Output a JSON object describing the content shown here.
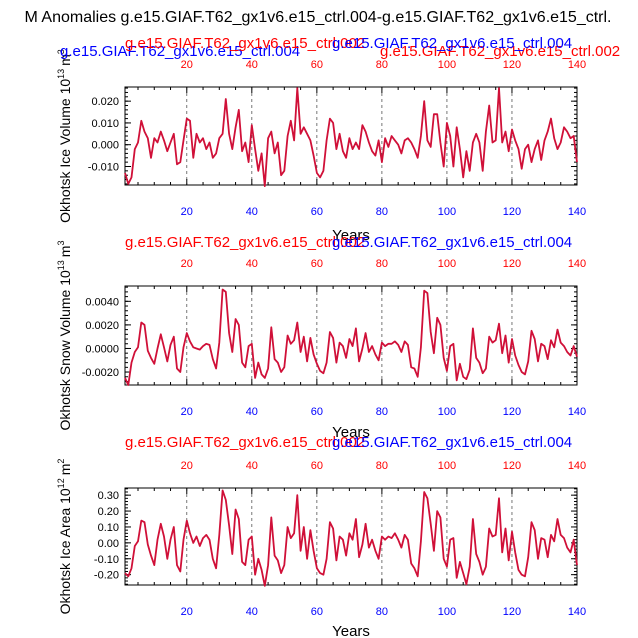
{
  "figure": {
    "title": "M Anomalies g.e15.GIAF.T62_gx1v6.e15_ctrl.004-g.e15.GIAF.T62_gx1v6.e15_ctrl.",
    "colors": {
      "blue": "#0000ff",
      "red": "#ff0000",
      "line": "#d01038",
      "grid": "#555555",
      "axis": "#000000"
    }
  },
  "chart_data": [
    {
      "type": "line",
      "ylabel": "Okhotsk Ice Volume 10",
      "ylabel_exp": "13",
      "ylabel_unit": "m",
      "ylabel_unit_exp": "3",
      "xlabel": "Years",
      "top_left_label": "g.e15.GIAF.T62_gx1v6.e15_ctrl.004",
      "top_mid_label": "g.e15.GIAF.T62_gx1v6.e15_ctrl.002",
      "top_right_label": "g.e15.GIAF.T62_gx1v6.e15_ctrl.002",
      "top_mid_label_2": "g.e15.GIAF.T62_gx1v6.e15_ctrl.004",
      "xlim": [
        1,
        140
      ],
      "ylim": [
        -0.0185,
        0.0265
      ],
      "xticks": [
        20,
        40,
        60,
        80,
        100,
        120,
        140
      ],
      "xtick_labels": [
        "20",
        "40",
        "60",
        "80",
        "100",
        "120",
        "140"
      ],
      "yticks": [
        -0.01,
        0.0,
        0.01,
        0.02
      ],
      "ytick_labels": [
        "-0.010",
        "0.000",
        "0.010",
        "0.020"
      ],
      "dashed_x": [
        20,
        40,
        60,
        80,
        100,
        120
      ],
      "x": [
        1,
        2,
        3,
        4,
        5,
        6,
        7,
        8,
        9,
        10,
        11,
        12,
        13,
        14,
        15,
        16,
        17,
        18,
        19,
        20,
        21,
        22,
        23,
        24,
        25,
        26,
        27,
        28,
        29,
        30,
        31,
        32,
        33,
        34,
        35,
        36,
        37,
        38,
        39,
        40,
        41,
        42,
        43,
        44,
        45,
        46,
        47,
        48,
        49,
        50,
        51,
        52,
        53,
        54,
        55,
        56,
        57,
        58,
        59,
        60,
        61,
        62,
        63,
        64,
        65,
        66,
        67,
        68,
        69,
        70,
        71,
        72,
        73,
        74,
        75,
        76,
        77,
        78,
        79,
        80,
        81,
        82,
        83,
        84,
        85,
        86,
        87,
        88,
        89,
        90,
        91,
        92,
        93,
        94,
        95,
        96,
        97,
        98,
        99,
        100,
        101,
        102,
        103,
        104,
        105,
        106,
        107,
        108,
        109,
        110,
        111,
        112,
        113,
        114,
        115,
        116,
        117,
        118,
        119,
        120,
        121,
        122,
        123,
        124,
        125,
        126,
        127,
        128,
        129,
        130,
        131,
        132,
        133,
        134,
        135,
        136,
        137,
        138,
        139,
        140
      ],
      "y": [
        -0.013,
        -0.018,
        -0.015,
        -0.002,
        0.001,
        0.011,
        0.006,
        0.003,
        -0.006,
        0.003,
        0.001,
        0.006,
        0.002,
        -0.003,
        0.001,
        0.005,
        -0.009,
        -0.008,
        0.002,
        0.012,
        0.011,
        -0.006,
        0.005,
        0.001,
        0.003,
        -0.002,
        0.001,
        -0.006,
        -0.004,
        0.003,
        0.005,
        0.021,
        0.005,
        -0.002,
        0.008,
        0.016,
        -0.003,
        0.001,
        -0.008,
        0.009,
        -0.002,
        -0.012,
        -0.004,
        -0.019,
        0.003,
        0.006,
        -0.004,
        0.001,
        -0.014,
        -0.012,
        0.004,
        0.011,
        0.002,
        0.026,
        0.005,
        0.008,
        0.005,
        0.002,
        -0.005,
        -0.013,
        -0.015,
        -0.012,
        0.002,
        0.012,
        0.01,
        -0.002,
        0.005,
        -0.003,
        -0.006,
        0.003,
        -0.002,
        0.001,
        -0.002,
        0.009,
        0.006,
        0.001,
        -0.003,
        -0.005,
        0.002,
        -0.008,
        0.003,
        -0.001,
        0.004,
        0.002,
        0.0,
        -0.004,
        0.002,
        0.003,
        0.001,
        -0.002,
        -0.006,
        0.004,
        0.02,
        0.002,
        -0.001,
        0.014,
        0.014,
        0.001,
        -0.01,
        0.01,
        0.004,
        -0.01,
        0.008,
        -0.002,
        -0.015,
        -0.003,
        -0.012,
        0.001,
        0.005,
        0.001,
        -0.012,
        0.006,
        0.018,
        0.001,
        0.002,
        0.026,
        0.001,
        0.006,
        -0.003,
        0.007,
        0.002,
        -0.002,
        -0.011,
        -0.002,
        0.0,
        -0.008,
        -0.002,
        0.002,
        -0.007,
        0.002,
        0.006,
        0.012,
        0.003,
        -0.002,
        0.001,
        0.008,
        0.006,
        0.003,
        0.004,
        -0.008
      ]
    },
    {
      "type": "line",
      "ylabel": "Okhotsk Snow Volume 10",
      "ylabel_exp": "13",
      "ylabel_unit": "m",
      "ylabel_unit_exp": "3",
      "xlabel": "Years",
      "top_left_label": "g.e15.GIAF.T62_gx1v6.e15_ctrl.002",
      "top_right_label": "g.e15.GIAF.T62_gx1v6.e15_ctrl.004",
      "xlim": [
        1,
        140
      ],
      "ylim": [
        -0.0031,
        0.0053
      ],
      "xticks": [
        20,
        40,
        60,
        80,
        100,
        120,
        140
      ],
      "xtick_labels": [
        "20",
        "40",
        "60",
        "80",
        "100",
        "120",
        "140"
      ],
      "yticks": [
        -0.002,
        0.0,
        0.002,
        0.004
      ],
      "ytick_labels": [
        "-0.0020",
        "0.0000",
        "0.0020",
        "0.0040"
      ],
      "dashed_x": [
        20,
        40,
        60,
        80,
        100,
        120
      ],
      "x": [
        1,
        2,
        3,
        4,
        5,
        6,
        7,
        8,
        9,
        10,
        11,
        12,
        13,
        14,
        15,
        16,
        17,
        18,
        19,
        20,
        21,
        22,
        23,
        24,
        25,
        26,
        27,
        28,
        29,
        30,
        31,
        32,
        33,
        34,
        35,
        36,
        37,
        38,
        39,
        40,
        41,
        42,
        43,
        44,
        45,
        46,
        47,
        48,
        49,
        50,
        51,
        52,
        53,
        54,
        55,
        56,
        57,
        58,
        59,
        60,
        61,
        62,
        63,
        64,
        65,
        66,
        67,
        68,
        69,
        70,
        71,
        72,
        73,
        74,
        75,
        76,
        77,
        78,
        79,
        80,
        81,
        82,
        83,
        84,
        85,
        86,
        87,
        88,
        89,
        90,
        91,
        92,
        93,
        94,
        95,
        96,
        97,
        98,
        99,
        100,
        101,
        102,
        103,
        104,
        105,
        106,
        107,
        108,
        109,
        110,
        111,
        112,
        113,
        114,
        115,
        116,
        117,
        118,
        119,
        120,
        121,
        122,
        123,
        124,
        125,
        126,
        127,
        128,
        129,
        130,
        131,
        132,
        133,
        134,
        135,
        136,
        137,
        138,
        139,
        140
      ],
      "y": [
        -0.0025,
        -0.0031,
        -0.0012,
        -0.0003,
        0.0001,
        0.0022,
        0.002,
        -0.0002,
        -0.0008,
        -0.0013,
        0.0,
        0.0012,
        0.0001,
        -0.0011,
        0.0003,
        0.001,
        -0.0017,
        -0.002,
        0.0001,
        0.0013,
        0.0006,
        0.0001,
        0.0,
        -0.0001,
        0.0002,
        0.0004,
        0.0003,
        -0.0009,
        -0.0017,
        0.0005,
        0.005,
        0.0048,
        0.0013,
        -0.0003,
        0.0025,
        0.002,
        -0.0012,
        -0.0016,
        0.0002,
        0.0004,
        -0.0025,
        -0.0012,
        -0.0022,
        -0.0025,
        -0.0017,
        0.0018,
        -0.0009,
        -0.0012,
        -0.002,
        -0.0016,
        0.0011,
        0.0004,
        0.0007,
        0.0022,
        -0.0003,
        0.001,
        -0.0011,
        0.0009,
        -0.0005,
        -0.0013,
        -0.0019,
        -0.0021,
        -0.0012,
        0.0014,
        0.0009,
        -0.0012,
        0.0005,
        0.0002,
        -0.0008,
        0.0008,
        0.0002,
        0.0017,
        -0.0011,
        0.0,
        0.0013,
        -0.0003,
        0.0002,
        -0.0005,
        -0.001,
        0.0005,
        0.0002,
        0.0004,
        0.0004,
        0.0006,
        0.0003,
        -0.0003,
        0.0006,
        0.0003,
        -0.0016,
        -0.0017,
        -0.0024,
        0.0001,
        0.0049,
        0.0047,
        0.0014,
        -0.0004,
        0.0026,
        0.002,
        -0.0008,
        -0.0019,
        0.0002,
        0.0004,
        -0.0027,
        -0.0013,
        -0.0024,
        -0.0026,
        -0.0018,
        0.0017,
        -0.0008,
        -0.0012,
        -0.0021,
        -0.0017,
        0.001,
        0.0005,
        0.0007,
        0.0021,
        -0.0004,
        0.0011,
        -0.0012,
        0.0008,
        -0.0006,
        -0.0014,
        -0.002,
        -0.0022,
        -0.0011,
        0.0015,
        0.0008,
        -0.0011,
        0.0004,
        0.0002,
        -0.0009,
        0.0007,
        0.0001,
        0.0016,
        0.0005,
        0.0002,
        -0.0003,
        -0.0006,
        0.0002,
        -0.0007
      ]
    },
    {
      "type": "line",
      "ylabel": "Okhotsk Ice Area 10",
      "ylabel_exp": "12",
      "ylabel_unit": "m",
      "ylabel_unit_exp": "2",
      "xlabel": "Years",
      "top_left_label": "g.e15.GIAF.T62_gx1v6.e15_ctrl.002",
      "top_right_label": "g.e15.GIAF.T62_gx1v6.e15_ctrl.004",
      "xlim": [
        1,
        140
      ],
      "ylim": [
        -0.265,
        0.345
      ],
      "xticks": [
        20,
        40,
        60,
        80,
        100,
        120,
        140
      ],
      "xtick_labels": [
        "20",
        "40",
        "60",
        "80",
        "100",
        "120",
        "140"
      ],
      "yticks": [
        -0.2,
        -0.1,
        0.0,
        0.1,
        0.2,
        0.3
      ],
      "ytick_labels": [
        "-0.20",
        "-0.10",
        "0.00",
        "0.10",
        "0.20",
        "0.30"
      ],
      "dashed_x": [
        20,
        40,
        60,
        80,
        100,
        120
      ],
      "x": [
        1,
        2,
        3,
        4,
        5,
        6,
        7,
        8,
        9,
        10,
        11,
        12,
        13,
        14,
        15,
        16,
        17,
        18,
        19,
        20,
        21,
        22,
        23,
        24,
        25,
        26,
        27,
        28,
        29,
        30,
        31,
        32,
        33,
        34,
        35,
        36,
        37,
        38,
        39,
        40,
        41,
        42,
        43,
        44,
        45,
        46,
        47,
        48,
        49,
        50,
        51,
        52,
        53,
        54,
        55,
        56,
        57,
        58,
        59,
        60,
        61,
        62,
        63,
        64,
        65,
        66,
        67,
        68,
        69,
        70,
        71,
        72,
        73,
        74,
        75,
        76,
        77,
        78,
        79,
        80,
        81,
        82,
        83,
        84,
        85,
        86,
        87,
        88,
        89,
        90,
        91,
        92,
        93,
        94,
        95,
        96,
        97,
        98,
        99,
        100,
        101,
        102,
        103,
        104,
        105,
        106,
        107,
        108,
        109,
        110,
        111,
        112,
        113,
        114,
        115,
        116,
        117,
        118,
        119,
        120,
        121,
        122,
        123,
        124,
        125,
        126,
        127,
        128,
        129,
        130,
        131,
        132,
        133,
        134,
        135,
        136,
        137,
        138,
        139,
        140
      ],
      "y": [
        -0.19,
        -0.21,
        -0.16,
        -0.02,
        0.01,
        0.14,
        0.13,
        -0.01,
        -0.08,
        -0.14,
        0.02,
        0.12,
        0.04,
        -0.1,
        0.02,
        0.1,
        -0.14,
        -0.18,
        0.02,
        0.14,
        0.06,
        0.0,
        0.04,
        -0.02,
        0.03,
        0.05,
        0.02,
        -0.1,
        -0.16,
        0.05,
        0.33,
        0.27,
        0.11,
        -0.07,
        0.21,
        0.15,
        -0.12,
        -0.14,
        0.02,
        0.04,
        -0.2,
        -0.1,
        -0.17,
        -0.27,
        -0.14,
        0.16,
        -0.08,
        -0.11,
        -0.19,
        -0.14,
        0.1,
        0.03,
        0.06,
        0.3,
        -0.05,
        0.1,
        -0.1,
        0.08,
        -0.05,
        -0.16,
        -0.19,
        -0.2,
        -0.1,
        0.13,
        0.09,
        -0.11,
        0.04,
        0.02,
        -0.08,
        0.06,
        0.02,
        0.15,
        -0.09,
        -0.01,
        0.12,
        -0.03,
        0.02,
        -0.05,
        -0.1,
        0.04,
        0.02,
        0.04,
        0.03,
        0.06,
        0.02,
        -0.03,
        0.05,
        0.02,
        -0.13,
        -0.16,
        -0.21,
        0.01,
        0.32,
        0.28,
        0.12,
        -0.05,
        0.2,
        0.16,
        -0.1,
        -0.15,
        0.02,
        0.03,
        -0.22,
        -0.12,
        -0.19,
        -0.26,
        -0.15,
        0.15,
        -0.07,
        -0.12,
        -0.2,
        -0.15,
        0.09,
        0.04,
        0.05,
        0.28,
        -0.06,
        0.09,
        -0.11,
        0.07,
        -0.06,
        -0.17,
        -0.2,
        -0.21,
        -0.09,
        0.13,
        0.08,
        -0.1,
        0.03,
        0.02,
        -0.09,
        0.05,
        0.01,
        0.15,
        0.05,
        0.03,
        -0.03,
        -0.06,
        0.02,
        -0.14
      ]
    }
  ]
}
